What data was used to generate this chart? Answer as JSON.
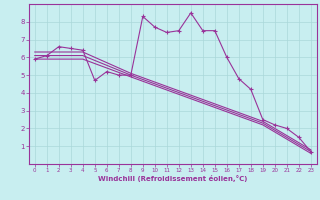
{
  "xlabel": "Windchill (Refroidissement éolien,°C)",
  "bg_color": "#c8eef0",
  "grid_color": "#aad8da",
  "line_color": "#993399",
  "xlim": [
    -0.5,
    23.5
  ],
  "ylim": [
    0,
    9.0
  ],
  "xticks": [
    0,
    1,
    2,
    3,
    4,
    5,
    6,
    7,
    8,
    9,
    10,
    11,
    12,
    13,
    14,
    15,
    16,
    17,
    18,
    19,
    20,
    21,
    22,
    23
  ],
  "yticks": [
    1,
    2,
    3,
    4,
    5,
    6,
    7,
    8
  ],
  "line1_x": [
    0,
    1,
    2,
    3,
    4,
    5,
    6,
    7,
    8,
    9,
    10,
    11,
    12,
    13,
    14,
    15,
    16,
    17,
    18,
    19,
    20,
    21,
    22,
    23
  ],
  "line1_y": [
    5.9,
    6.1,
    6.6,
    6.5,
    6.4,
    4.7,
    5.2,
    5.0,
    5.0,
    8.3,
    7.7,
    7.4,
    7.5,
    8.5,
    7.5,
    7.5,
    6.0,
    4.8,
    4.2,
    2.5,
    2.2,
    2.0,
    1.5,
    0.7
  ],
  "line2_x": [
    0,
    4,
    8,
    19,
    23
  ],
  "line2_y": [
    6.3,
    6.3,
    5.1,
    2.4,
    0.8
  ],
  "line3_x": [
    0,
    4,
    8,
    19,
    23
  ],
  "line3_y": [
    6.1,
    6.1,
    5.0,
    2.3,
    0.7
  ],
  "line4_x": [
    0,
    4,
    8,
    19,
    23
  ],
  "line4_y": [
    5.9,
    5.9,
    4.9,
    2.2,
    0.6
  ]
}
